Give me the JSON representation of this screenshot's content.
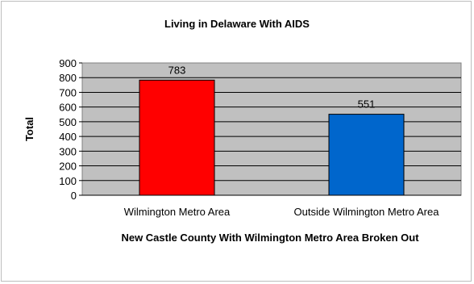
{
  "chart_data": {
    "type": "bar",
    "title": "Living in Delaware With AIDS",
    "xlabel": "New Castle County With Wilmington Metro Area Broken Out",
    "ylabel": "Total",
    "categories": [
      "Wilmington Metro Area",
      "Outside Wilmington Metro Area"
    ],
    "values": [
      783,
      551
    ],
    "data_labels": [
      "783",
      "551"
    ],
    "bar_colors": [
      "#ff0000",
      "#0066cc"
    ],
    "plot_background": "#c0c0c0",
    "ylim": [
      0,
      900
    ],
    "ytick_step": 100,
    "yticks": [
      "0",
      "100",
      "200",
      "300",
      "400",
      "500",
      "600",
      "700",
      "800",
      "900"
    ],
    "grid": true,
    "legend": "none"
  }
}
